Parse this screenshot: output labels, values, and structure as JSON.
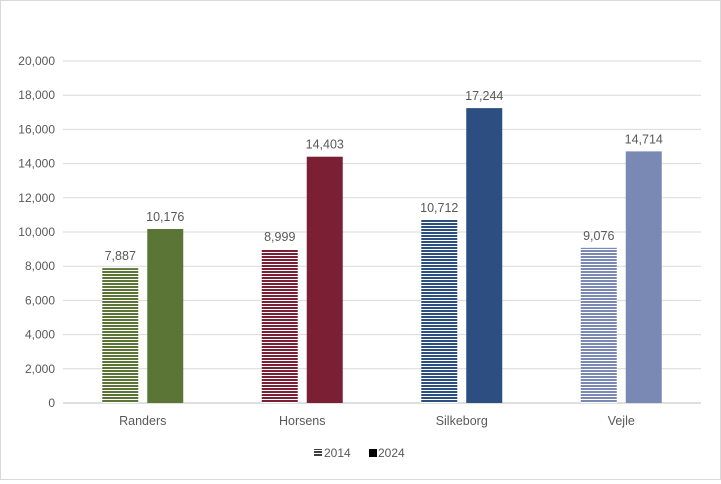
{
  "chart_data": {
    "type": "bar",
    "categories": [
      "Randers",
      "Horsens",
      "Silkeborg",
      "Vejle"
    ],
    "series": [
      {
        "name": "2014",
        "values": [
          7887,
          8999,
          10712,
          9076
        ],
        "pattern": "horizontal-stripes"
      },
      {
        "name": "2024",
        "values": [
          10176,
          14403,
          17244,
          14714
        ],
        "pattern": "solid"
      }
    ],
    "data_labels": [
      [
        "7,887",
        "8,999",
        "10,712",
        "9,076"
      ],
      [
        "10,176",
        "14,403",
        "17,244",
        "14,714"
      ]
    ],
    "category_colors": [
      "#5b7537",
      "#7b1f34",
      "#2c4e80",
      "#7a89b4"
    ],
    "ylim": [
      0,
      20000
    ],
    "yticks": [
      "0",
      "2,000",
      "4,000",
      "6,000",
      "8,000",
      "10,000",
      "12,000",
      "14,000",
      "16,000",
      "18,000",
      "20,000"
    ],
    "grid": true,
    "legend": "bottom",
    "title": "",
    "xlabel": "",
    "ylabel": ""
  }
}
